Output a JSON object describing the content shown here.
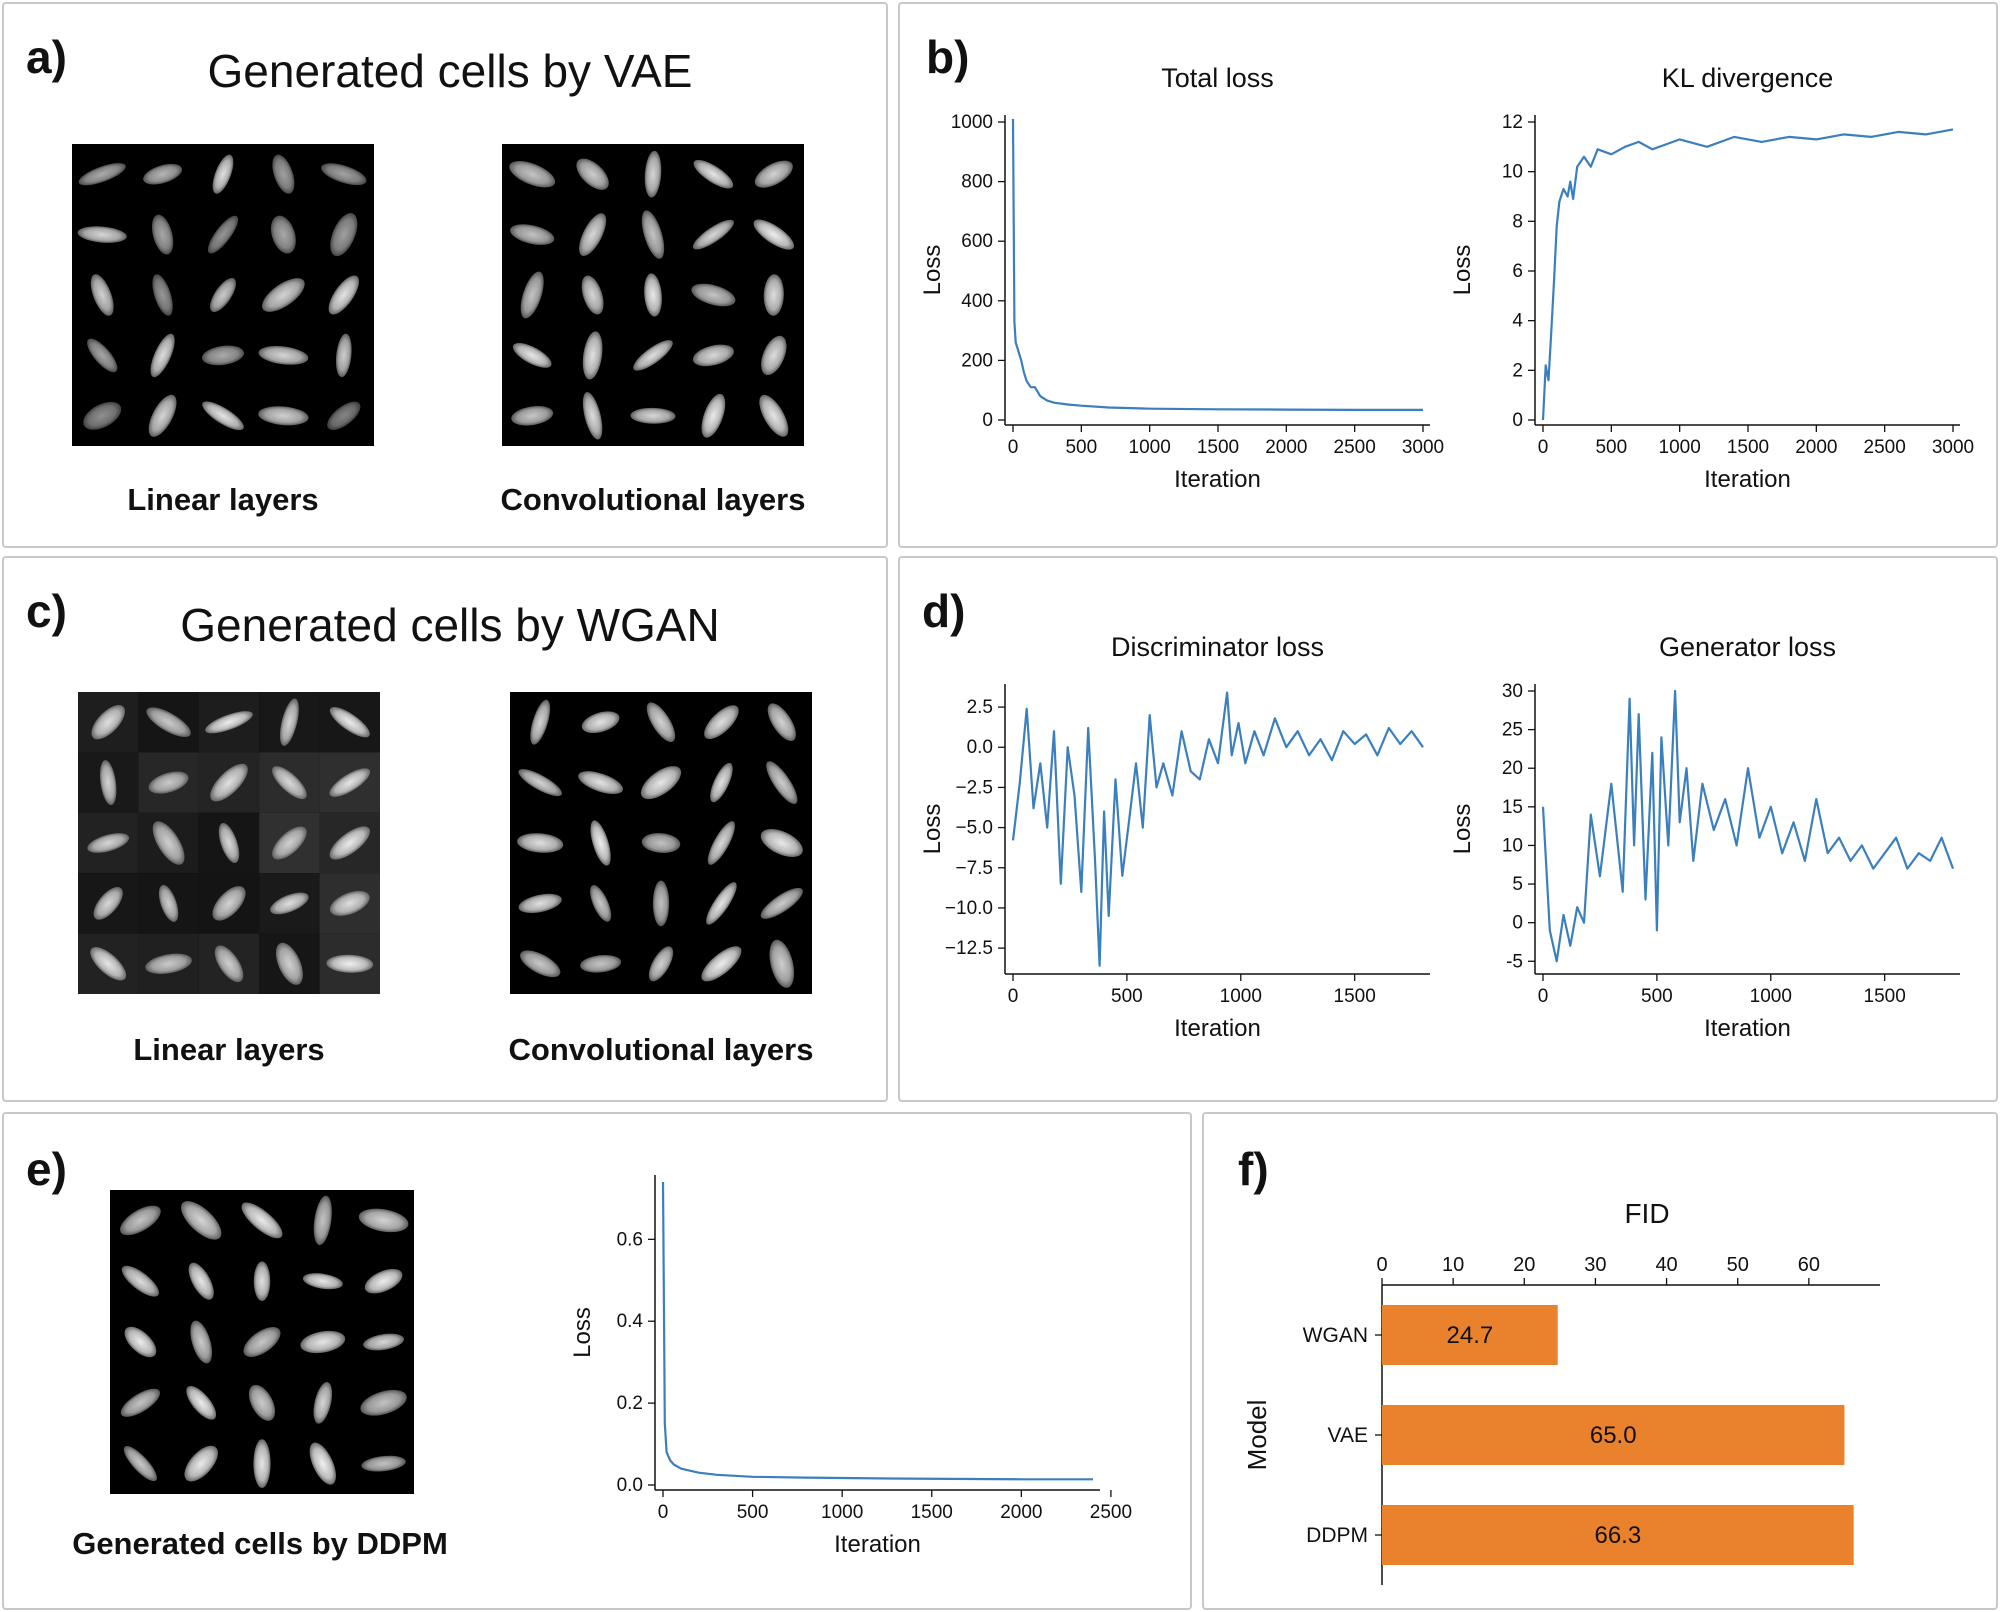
{
  "panels": {
    "a": {
      "label": "a)",
      "title": "Generated cells by VAE",
      "captions": [
        "Linear layers",
        "Convolutional layers"
      ]
    },
    "b": {
      "label": "b)"
    },
    "c": {
      "label": "c)",
      "title": "Generated cells by WGAN",
      "captions": [
        "Linear layers",
        "Convolutional layers"
      ]
    },
    "d": {
      "label": "d)"
    },
    "e": {
      "label": "e)",
      "caption": "Generated cells by DDPM"
    },
    "f": {
      "label": "f)"
    }
  },
  "colors": {
    "line": "#3b7fbd",
    "bar": "#e9812d",
    "border": "#c8c8c8"
  },
  "chart_data": [
    {
      "id": "total-loss",
      "type": "line",
      "title": "Total loss",
      "xlabel": "Iteration",
      "ylabel": "Loss",
      "xlim": [
        0,
        3000
      ],
      "ylim": [
        0,
        1000
      ],
      "xticks": [
        0,
        500,
        1000,
        1500,
        2000,
        2500,
        3000
      ],
      "yticks": [
        0,
        200,
        400,
        600,
        800,
        1000
      ],
      "x": [
        0,
        10,
        20,
        40,
        60,
        80,
        100,
        130,
        160,
        200,
        250,
        300,
        400,
        500,
        700,
        1000,
        1500,
        2000,
        2500,
        3000
      ],
      "y": [
        1010,
        330,
        260,
        230,
        200,
        160,
        130,
        110,
        110,
        80,
        65,
        58,
        52,
        48,
        42,
        38,
        36,
        35,
        34,
        34
      ]
    },
    {
      "id": "kl-divergence",
      "type": "line",
      "title": "KL divergence",
      "xlabel": "Iteration",
      "ylabel": "Loss",
      "xlim": [
        0,
        3000
      ],
      "ylim": [
        0,
        12
      ],
      "xticks": [
        0,
        500,
        1000,
        1500,
        2000,
        2500,
        3000
      ],
      "yticks": [
        0,
        2,
        4,
        6,
        8,
        10,
        12
      ],
      "x": [
        0,
        20,
        40,
        60,
        80,
        100,
        120,
        150,
        180,
        200,
        220,
        250,
        300,
        350,
        400,
        500,
        600,
        700,
        800,
        900,
        1000,
        1200,
        1400,
        1600,
        1800,
        2000,
        2200,
        2400,
        2600,
        2800,
        3000
      ],
      "y": [
        0,
        2.2,
        1.6,
        3.5,
        5.5,
        7.8,
        8.8,
        9.3,
        9.0,
        9.6,
        8.9,
        10.2,
        10.6,
        10.2,
        10.9,
        10.7,
        11.0,
        11.2,
        10.9,
        11.1,
        11.3,
        11.0,
        11.4,
        11.2,
        11.4,
        11.3,
        11.5,
        11.4,
        11.6,
        11.5,
        11.7
      ]
    },
    {
      "id": "discriminator-loss",
      "type": "line",
      "title": "Discriminator loss",
      "xlabel": "Iteration",
      "ylabel": "Loss",
      "xlim": [
        0,
        1800
      ],
      "ylim": [
        -13.8,
        3.5
      ],
      "xticks": [
        0,
        500,
        1000,
        1500
      ],
      "yticks": [
        -12.5,
        -10.0,
        -7.5,
        -5.0,
        -2.5,
        0.0,
        2.5
      ],
      "x": [
        0,
        30,
        60,
        90,
        120,
        150,
        180,
        210,
        240,
        270,
        300,
        330,
        360,
        380,
        400,
        420,
        450,
        480,
        510,
        540,
        570,
        600,
        630,
        660,
        700,
        740,
        780,
        820,
        860,
        900,
        940,
        960,
        990,
        1020,
        1060,
        1100,
        1150,
        1200,
        1250,
        1300,
        1350,
        1400,
        1450,
        1500,
        1550,
        1600,
        1650,
        1700,
        1750,
        1800
      ],
      "y": [
        -5.8,
        -2.2,
        2.4,
        -3.8,
        -1.0,
        -5.0,
        1.0,
        -8.5,
        0.0,
        -3.0,
        -9.0,
        1.2,
        -7.0,
        -13.6,
        -4.0,
        -10.5,
        -2.0,
        -8.0,
        -4.5,
        -1.0,
        -5.0,
        2.0,
        -2.5,
        -1.0,
        -3.0,
        1.0,
        -1.5,
        -2.0,
        0.5,
        -1.0,
        3.4,
        -0.5,
        1.5,
        -1.0,
        1.0,
        -0.5,
        1.8,
        0.0,
        1.0,
        -0.5,
        0.5,
        -0.8,
        1.0,
        0.2,
        0.8,
        -0.5,
        1.2,
        0.2,
        1.0,
        0.0
      ]
    },
    {
      "id": "generator-loss",
      "type": "line",
      "title": "Generator loss",
      "xlabel": "Iteration",
      "ylabel": "Loss",
      "xlim": [
        0,
        1800
      ],
      "ylim": [
        -6,
        30
      ],
      "xticks": [
        0,
        500,
        1000,
        1500
      ],
      "yticks": [
        -5,
        0,
        5,
        10,
        15,
        20,
        25,
        30
      ],
      "x": [
        0,
        30,
        60,
        90,
        120,
        150,
        180,
        210,
        250,
        300,
        350,
        380,
        400,
        420,
        450,
        480,
        500,
        520,
        550,
        580,
        600,
        630,
        660,
        700,
        750,
        800,
        850,
        900,
        950,
        1000,
        1050,
        1100,
        1150,
        1200,
        1250,
        1300,
        1350,
        1400,
        1450,
        1500,
        1550,
        1600,
        1650,
        1700,
        1750,
        1800
      ],
      "y": [
        15,
        -1,
        -5,
        1,
        -3,
        2,
        0,
        14,
        6,
        18,
        4,
        29,
        10,
        27,
        3,
        22,
        -1,
        24,
        10,
        30,
        13,
        20,
        8,
        18,
        12,
        16,
        10,
        20,
        11,
        15,
        9,
        13,
        8,
        16,
        9,
        11,
        8,
        10,
        7,
        9,
        11,
        7,
        9,
        8,
        11,
        7
      ]
    },
    {
      "id": "ddpm-loss",
      "type": "line",
      "title": "",
      "xlabel": "Iteration",
      "ylabel": "Loss",
      "xlim": [
        0,
        2400
      ],
      "ylim": [
        0,
        0.74
      ],
      "xticks": [
        0,
        500,
        1000,
        1500,
        2000,
        2500
      ],
      "yticks": [
        0.0,
        0.2,
        0.4,
        0.6
      ],
      "x": [
        0,
        5,
        10,
        20,
        40,
        60,
        100,
        150,
        200,
        300,
        500,
        800,
        1200,
        1600,
        2000,
        2400
      ],
      "y": [
        0.74,
        0.45,
        0.15,
        0.08,
        0.06,
        0.05,
        0.04,
        0.035,
        0.03,
        0.025,
        0.02,
        0.018,
        0.016,
        0.015,
        0.014,
        0.014
      ]
    },
    {
      "id": "fid-bar",
      "type": "bar",
      "orientation": "horizontal",
      "title": "FID",
      "xlabel": "FID",
      "ylabel": "Model",
      "xlim": [
        0,
        70
      ],
      "xticks": [
        0,
        10,
        20,
        30,
        40,
        50,
        60
      ],
      "categories": [
        "WGAN",
        "VAE",
        "DDPM"
      ],
      "values": [
        24.7,
        65.0,
        66.3
      ],
      "value_labels": [
        "24.7",
        "65.0",
        "66.3"
      ]
    }
  ]
}
